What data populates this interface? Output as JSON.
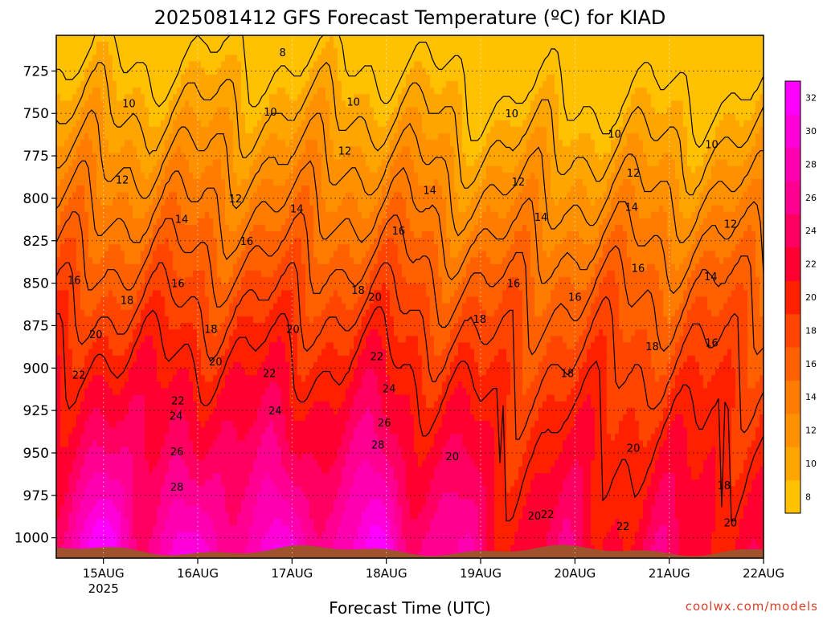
{
  "chart_data": {
    "type": "heatmap",
    "title": "2025081412 GFS Forecast Temperature (ºC) for KIAD",
    "xlabel": "Forecast Time (UTC)",
    "ylabel": "",
    "credit": "coolwx.com/models",
    "x_ticks": [
      {
        "label": "15AUG",
        "sublabel": "2025",
        "day": 1.0
      },
      {
        "label": "16AUG",
        "sublabel": "",
        "day": 2.0
      },
      {
        "label": "17AUG",
        "sublabel": "",
        "day": 3.0
      },
      {
        "label": "18AUG",
        "sublabel": "",
        "day": 4.0
      },
      {
        "label": "19AUG",
        "sublabel": "",
        "day": 5.0
      },
      {
        "label": "20AUG",
        "sublabel": "",
        "day": 6.0
      },
      {
        "label": "21AUG",
        "sublabel": "",
        "day": 7.0
      },
      {
        "label": "22AUG",
        "sublabel": "",
        "day": 8.0
      }
    ],
    "x_range_days": [
      0.5,
      8.0
    ],
    "y_ticks": [
      725,
      750,
      775,
      800,
      825,
      850,
      875,
      900,
      925,
      950,
      975,
      1000
    ],
    "y_range": [
      1012,
      704
    ],
    "colorbar": {
      "ticks": [
        8,
        10,
        12,
        14,
        16,
        18,
        20,
        22,
        24,
        26,
        28,
        30,
        32
      ],
      "colors": [
        "#ffc100",
        "#ffa500",
        "#ff9000",
        "#ff7c00",
        "#ff6000",
        "#ff4500",
        "#ff2000",
        "#ff0030",
        "#ff0060",
        "#ff0090",
        "#ff00b0",
        "#ff00d8",
        "#ff00ff"
      ]
    },
    "contour_labels": [
      {
        "text": "8",
        "day": 2.9,
        "p": 714
      },
      {
        "text": "10",
        "day": 1.27,
        "p": 744
      },
      {
        "text": "10",
        "day": 2.77,
        "p": 749
      },
      {
        "text": "10",
        "day": 3.65,
        "p": 743
      },
      {
        "text": "10",
        "day": 5.33,
        "p": 750
      },
      {
        "text": "10",
        "day": 6.42,
        "p": 762
      },
      {
        "text": "10",
        "day": 7.45,
        "p": 768
      },
      {
        "text": "12",
        "day": 1.2,
        "p": 789
      },
      {
        "text": "12",
        "day": 2.4,
        "p": 800
      },
      {
        "text": "12",
        "day": 3.56,
        "p": 772
      },
      {
        "text": "12",
        "day": 5.4,
        "p": 790
      },
      {
        "text": "12",
        "day": 6.62,
        "p": 785
      },
      {
        "text": "12",
        "day": 7.65,
        "p": 815
      },
      {
        "text": "14",
        "day": 1.83,
        "p": 812
      },
      {
        "text": "14",
        "day": 3.05,
        "p": 806
      },
      {
        "text": "14",
        "day": 4.46,
        "p": 795
      },
      {
        "text": "14",
        "day": 5.64,
        "p": 811
      },
      {
        "text": "14",
        "day": 6.6,
        "p": 805
      },
      {
        "text": "14",
        "day": 7.44,
        "p": 846
      },
      {
        "text": "16",
        "day": 0.69,
        "p": 848
      },
      {
        "text": "16",
        "day": 1.79,
        "p": 850
      },
      {
        "text": "16",
        "day": 2.52,
        "p": 825
      },
      {
        "text": "16",
        "day": 4.13,
        "p": 819
      },
      {
        "text": "16",
        "day": 5.35,
        "p": 850
      },
      {
        "text": "16",
        "day": 6.0,
        "p": 858
      },
      {
        "text": "16",
        "day": 6.67,
        "p": 841
      },
      {
        "text": "16",
        "day": 7.45,
        "p": 885
      },
      {
        "text": "18",
        "day": 1.25,
        "p": 860
      },
      {
        "text": "18",
        "day": 2.14,
        "p": 877
      },
      {
        "text": "18",
        "day": 3.7,
        "p": 854
      },
      {
        "text": "18",
        "day": 4.99,
        "p": 871
      },
      {
        "text": "18",
        "day": 5.92,
        "p": 903
      },
      {
        "text": "18",
        "day": 6.82,
        "p": 887
      },
      {
        "text": "18",
        "day": 7.58,
        "p": 969
      },
      {
        "text": "20",
        "day": 0.92,
        "p": 880
      },
      {
        "text": "20",
        "day": 2.19,
        "p": 896
      },
      {
        "text": "20",
        "day": 3.01,
        "p": 877
      },
      {
        "text": "20",
        "day": 3.88,
        "p": 858
      },
      {
        "text": "20",
        "day": 4.7,
        "p": 952
      },
      {
        "text": "20",
        "day": 5.57,
        "p": 987
      },
      {
        "text": "20",
        "day": 6.62,
        "p": 947
      },
      {
        "text": "20",
        "day": 7.65,
        "p": 991
      },
      {
        "text": "22",
        "day": 0.74,
        "p": 904
      },
      {
        "text": "22",
        "day": 1.79,
        "p": 919
      },
      {
        "text": "22",
        "day": 2.76,
        "p": 903
      },
      {
        "text": "22",
        "day": 3.9,
        "p": 893
      },
      {
        "text": "22",
        "day": 5.71,
        "p": 986
      },
      {
        "text": "22",
        "day": 6.51,
        "p": 993
      },
      {
        "text": "24",
        "day": 1.77,
        "p": 928
      },
      {
        "text": "24",
        "day": 2.82,
        "p": 925
      },
      {
        "text": "24",
        "day": 4.03,
        "p": 912
      },
      {
        "text": "26",
        "day": 1.78,
        "p": 949
      },
      {
        "text": "26",
        "day": 3.98,
        "p": 932
      },
      {
        "text": "28",
        "day": 1.78,
        "p": 970
      },
      {
        "text": "28",
        "day": 3.91,
        "p": 945
      }
    ],
    "grid": true
  }
}
